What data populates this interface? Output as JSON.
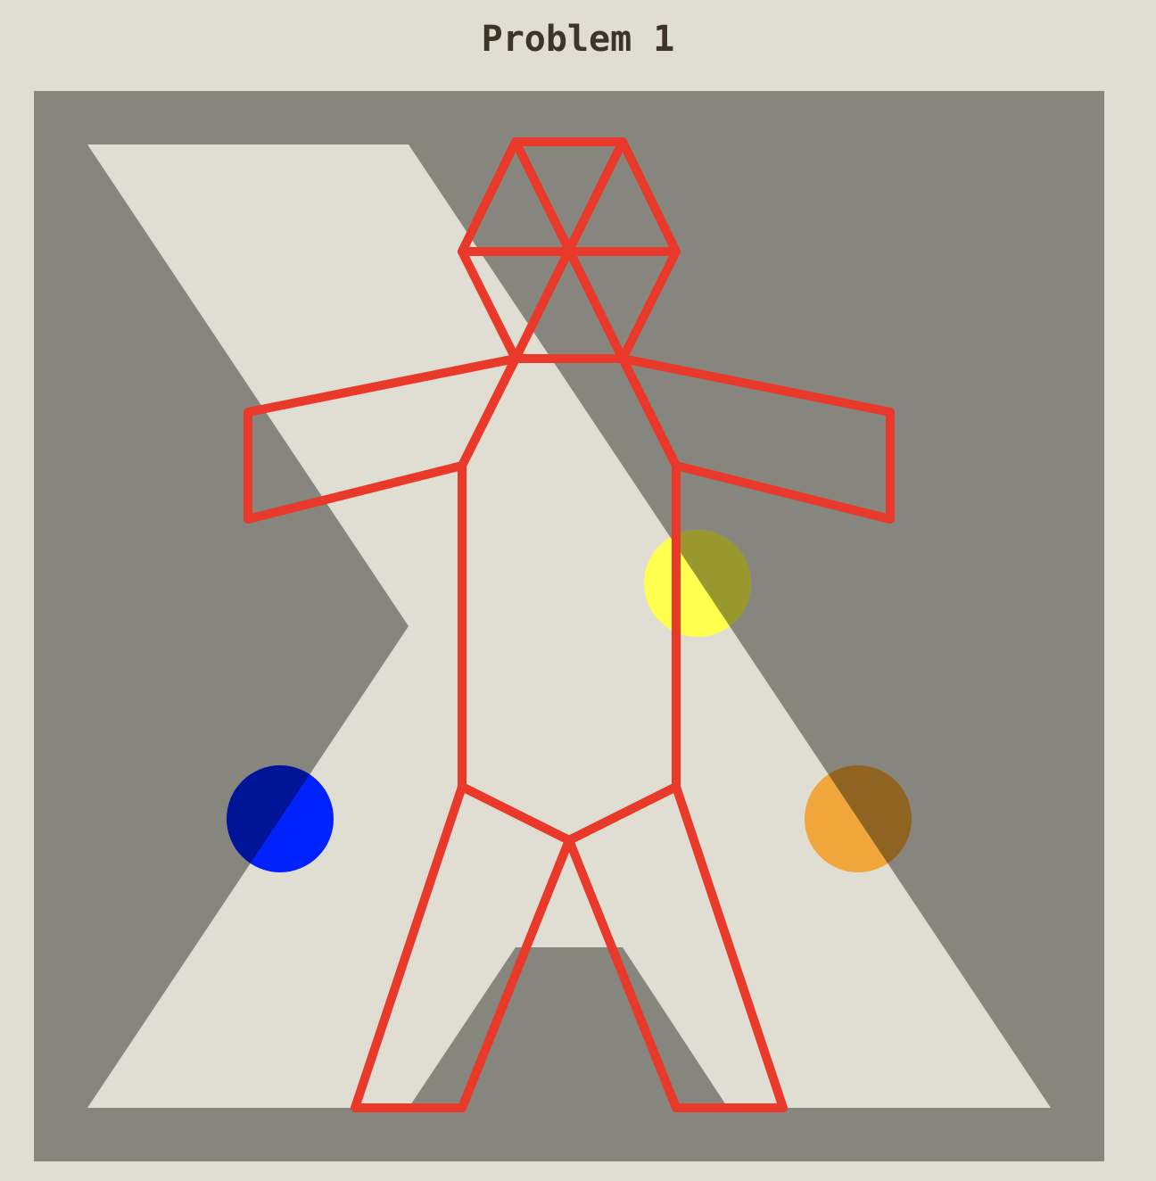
{
  "title": "Problem 1",
  "colors": {
    "page_background": "#e0ded3",
    "board_background": "#87867e",
    "silhouette": "#e0ded3",
    "figure_outline": "#e8392a",
    "title_text": "#3c3528"
  },
  "markers": [
    {
      "name": "yellow-marker",
      "color": "#ffff50"
    },
    {
      "name": "blue-marker",
      "color": "#0022ff"
    },
    {
      "name": "orange-marker",
      "color": "#f0a63a"
    }
  ]
}
